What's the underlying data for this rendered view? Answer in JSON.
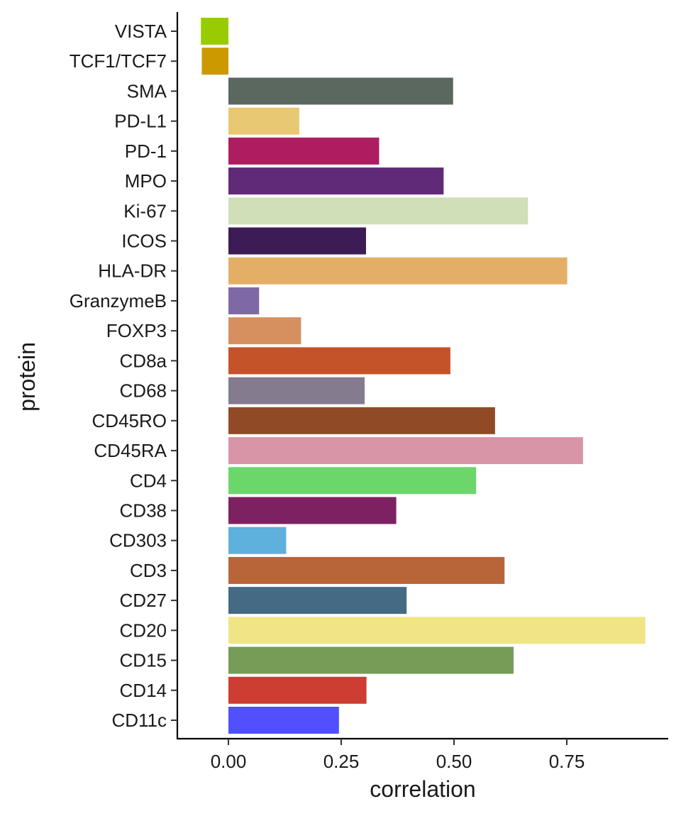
{
  "chart_data": {
    "type": "bar",
    "orientation": "horizontal",
    "title": "",
    "xlabel": "correlation",
    "ylabel": "protein",
    "xlim": [
      -0.11,
      0.985
    ],
    "xticks": [
      0.0,
      0.25,
      0.5,
      0.75
    ],
    "xtick_labels": [
      "0.00",
      "0.25",
      "0.50",
      "0.75"
    ],
    "grid": false,
    "legend": "none",
    "categories": [
      "VISTA",
      "TCF1/TCF7",
      "SMA",
      "PD-L1",
      "PD-1",
      "MPO",
      "Ki-67",
      "ICOS",
      "HLA-DR",
      "GranzymeB",
      "FOXP3",
      "CD8a",
      "CD68",
      "CD45RO",
      "CD45RA",
      "CD4",
      "CD38",
      "CD303",
      "CD3",
      "CD27",
      "CD20",
      "CD15",
      "CD14",
      "CD11c"
    ],
    "values": [
      -0.061,
      -0.059,
      0.498,
      0.157,
      0.334,
      0.477,
      0.664,
      0.305,
      0.751,
      0.068,
      0.161,
      0.492,
      0.302,
      0.591,
      0.786,
      0.549,
      0.372,
      0.128,
      0.612,
      0.395,
      0.924,
      0.632,
      0.306,
      0.245
    ],
    "colors": [
      "#99CC00",
      "#CC9900",
      "#5A6860",
      "#E8C872",
      "#AD1D60",
      "#612A79",
      "#D0DFB8",
      "#3D1C55",
      "#E3AF67",
      "#7E69A6",
      "#D69060",
      "#C5532A",
      "#857B8E",
      "#904A25",
      "#D895A7",
      "#6BD76B",
      "#7E2163",
      "#5EB0DD",
      "#B9653A",
      "#456A84",
      "#F0E585",
      "#769C58",
      "#CD3D31",
      "#5050FF"
    ]
  }
}
